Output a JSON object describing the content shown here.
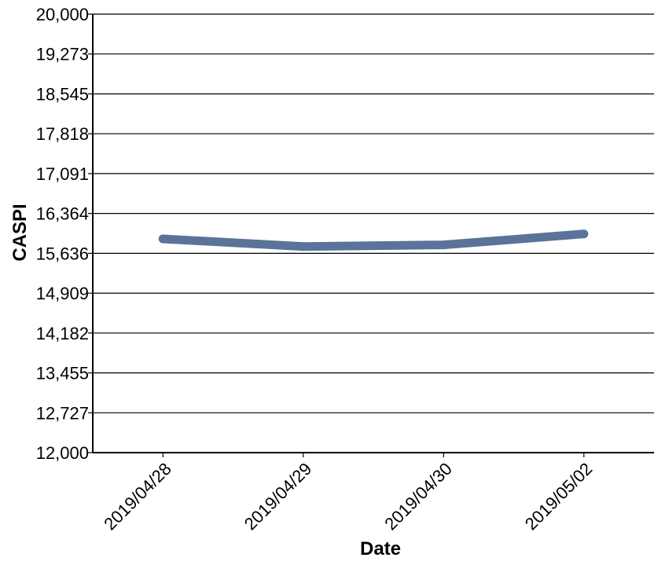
{
  "chart_data": {
    "type": "line",
    "title": "",
    "xlabel": "Date",
    "ylabel": "CASPI",
    "categories": [
      "2019/04/28",
      "2019/04/29",
      "2019/04/30",
      "2019/05/02"
    ],
    "series": [
      {
        "values": [
          15900,
          15760,
          15790,
          15990
        ],
        "color": "#5b7399"
      }
    ],
    "ylim": [
      12000,
      20000
    ],
    "yticks": [
      12000,
      12727,
      13455,
      14182,
      14909,
      15636,
      16364,
      17091,
      17818,
      18545,
      19273,
      20000
    ],
    "ytick_labels": [
      "12,000",
      "12,727",
      "13,455",
      "14,182",
      "14,909",
      "15,636",
      "16,364",
      "17,091",
      "17,818",
      "18,545",
      "19,273",
      "20,000"
    ],
    "grid": true,
    "legend": "none"
  }
}
